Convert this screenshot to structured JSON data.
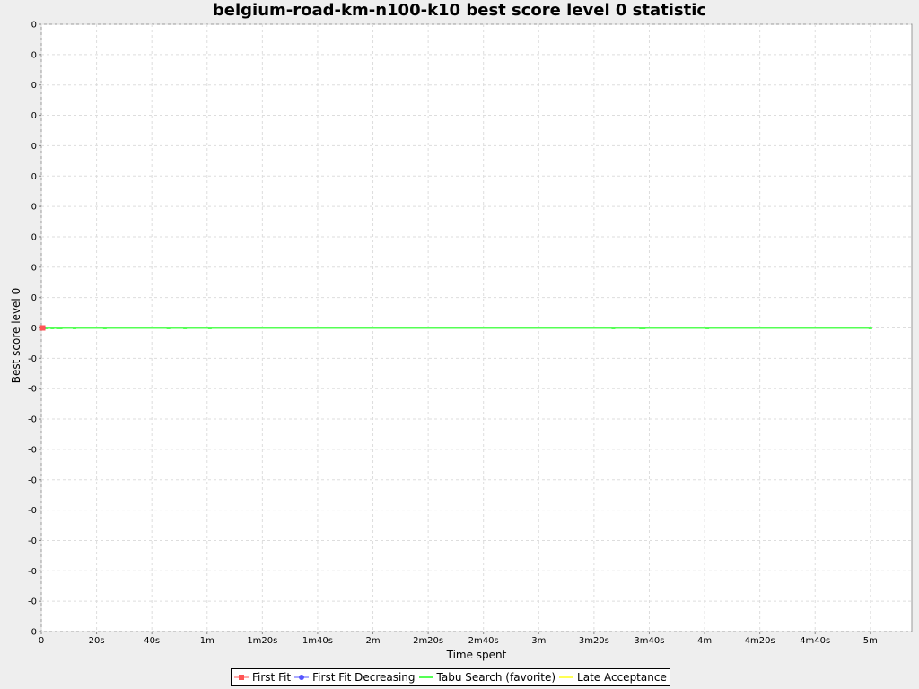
{
  "chart_data": {
    "type": "line",
    "title": "belgium-road-km-n100-k10 best score level 0 statistic",
    "xlabel": "Time spent",
    "ylabel": "Best score level 0",
    "x_tick_labels": [
      "0",
      "20s",
      "40s",
      "1m",
      "1m20s",
      "1m40s",
      "2m",
      "2m20s",
      "2m40s",
      "3m",
      "3m20s",
      "3m40s",
      "4m",
      "4m20s",
      "4m40s",
      "5m"
    ],
    "x_tick_values_seconds": [
      0,
      20,
      40,
      60,
      80,
      100,
      120,
      140,
      160,
      180,
      200,
      220,
      240,
      260,
      280,
      300
    ],
    "xlim_seconds": [
      0,
      315
    ],
    "y_tick_labels": [
      "0",
      "0",
      "0",
      "0",
      "0",
      "0",
      "0",
      "0",
      "0",
      "0",
      "0",
      "-0",
      "-0",
      "-0",
      "-0",
      "-0",
      "-0",
      "-0",
      "-0",
      "-0",
      "-0"
    ],
    "ylim": [
      -1,
      1
    ],
    "grid": true,
    "legend_position": "bottom",
    "series": [
      {
        "name": "First Fit",
        "color": "#ff5555",
        "marker": "square",
        "x": [
          0.5
        ],
        "y": [
          0
        ]
      },
      {
        "name": "First Fit Decreasing",
        "color": "#5555ff",
        "marker": "circle",
        "x": [
          0.6
        ],
        "y": [
          0
        ]
      },
      {
        "name": "Tabu Search (favorite)",
        "color": "#55ff55",
        "marker": "none",
        "x": [
          0.7,
          1,
          2,
          4,
          6,
          7,
          12,
          23,
          46,
          52,
          61,
          207,
          217,
          218,
          241,
          300
        ],
        "y": [
          0,
          0,
          0,
          0,
          0,
          0,
          0,
          0,
          0,
          0,
          0,
          0,
          0,
          0,
          0,
          0
        ]
      },
      {
        "name": "Late Acceptance",
        "color": "#ffff55",
        "marker": "none",
        "x": [],
        "y": []
      }
    ]
  }
}
